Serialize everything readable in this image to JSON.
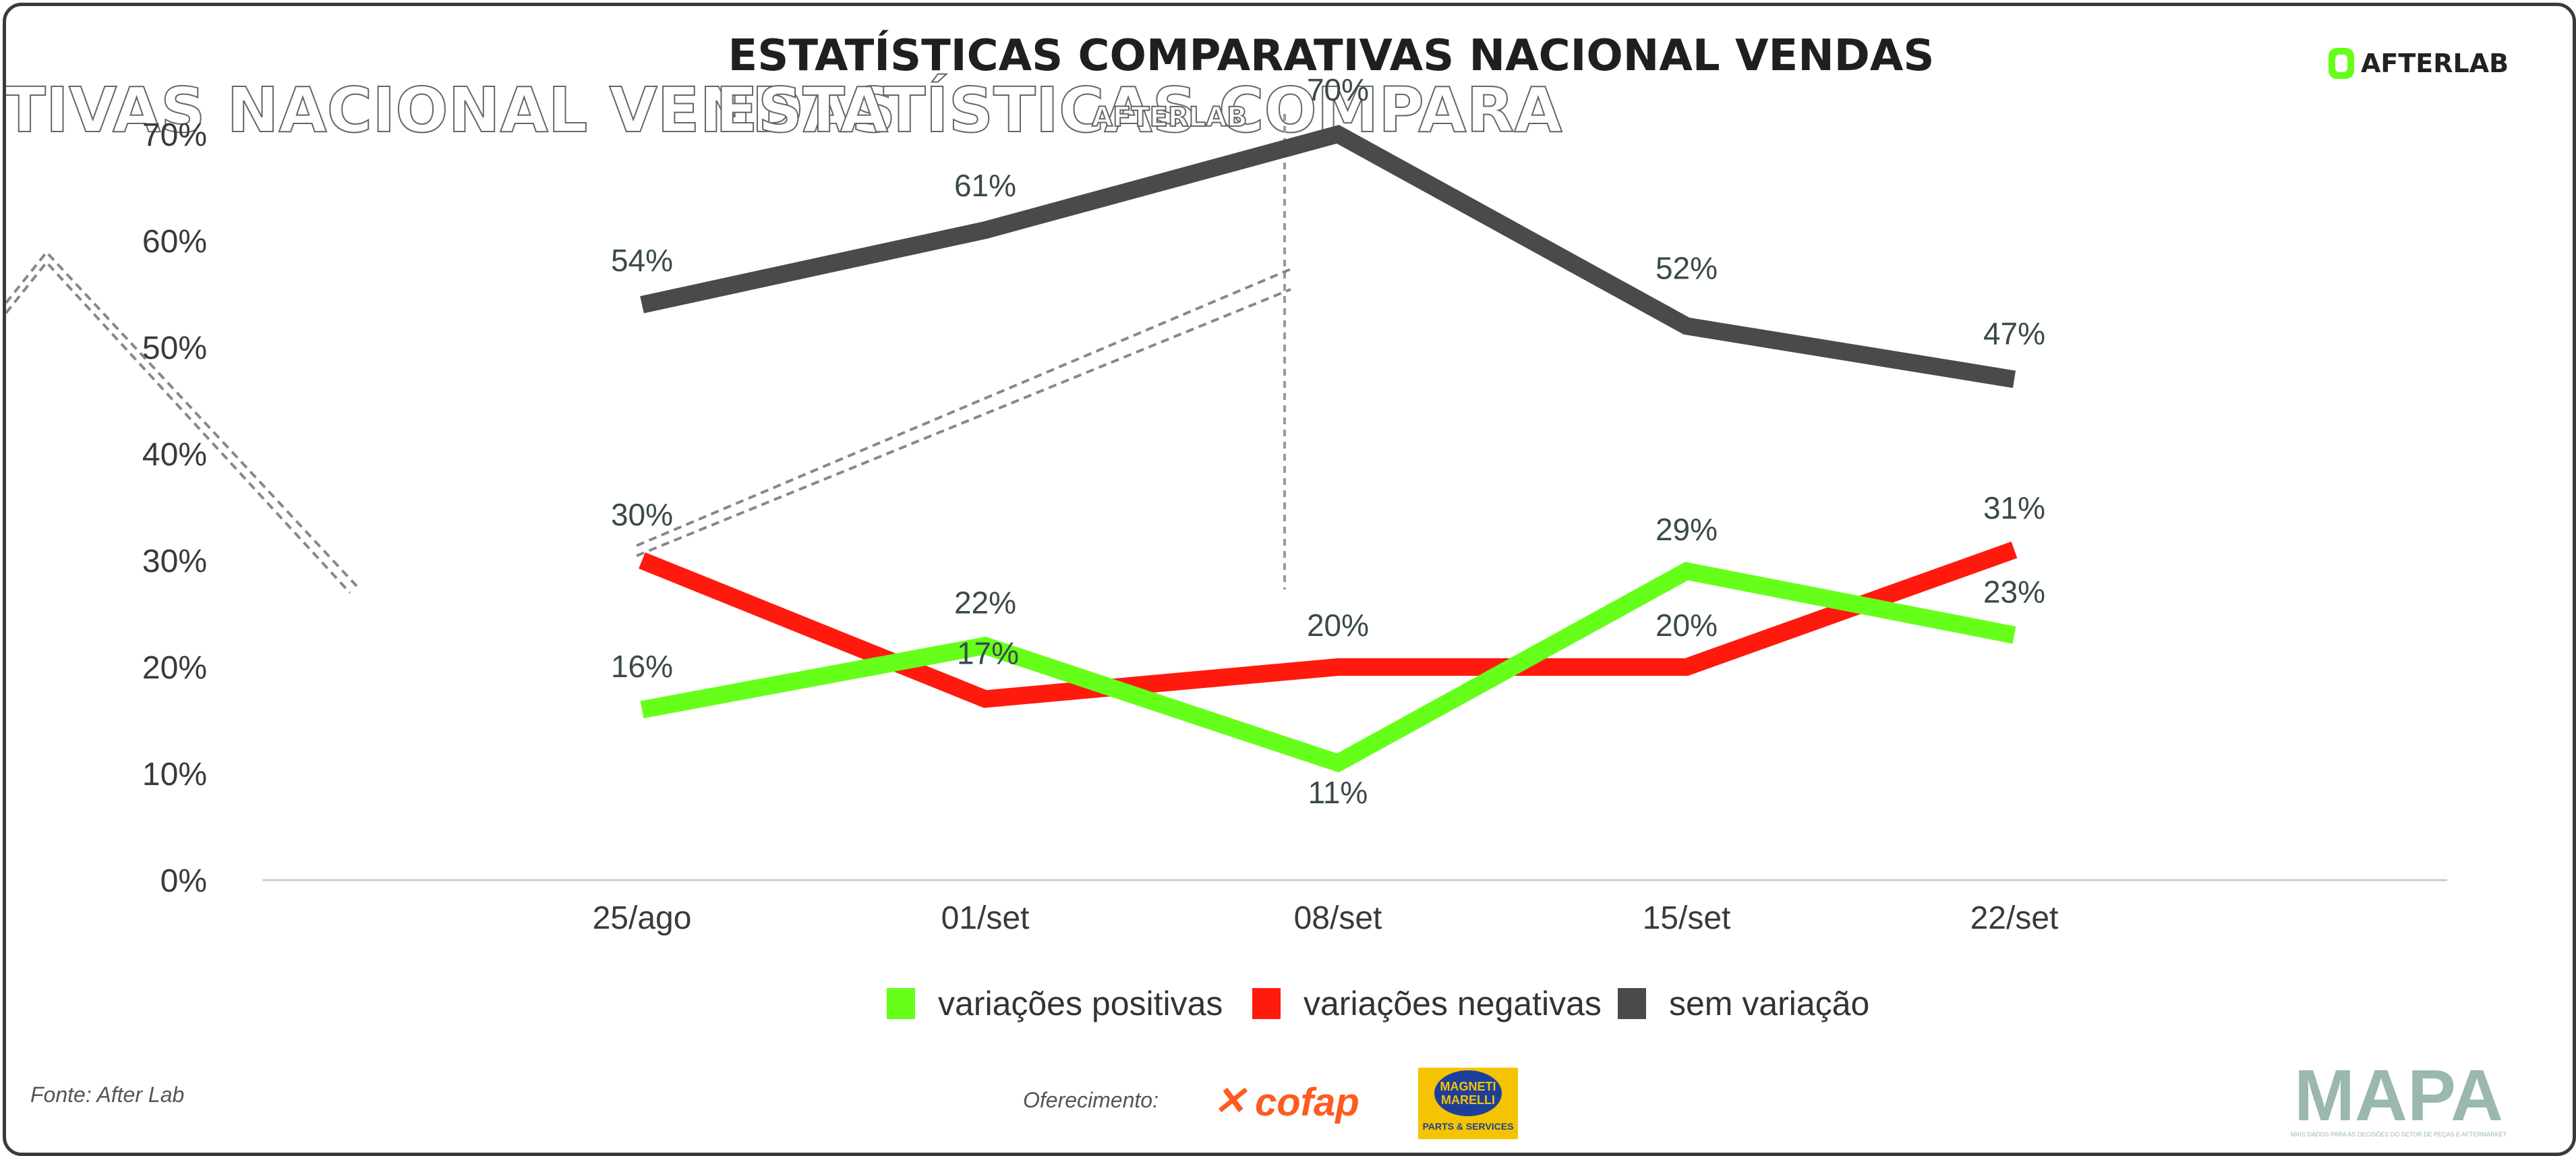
{
  "chart_data": {
    "type": "line",
    "title": "ESTATÍSTICAS COMPARATIVAS NACIONAL VENDAS",
    "categories": [
      "25/ago",
      "01/set",
      "08/set",
      "15/set",
      "22/set"
    ],
    "y_ticks": [
      "0%",
      "10%",
      "20%",
      "30%",
      "40%",
      "50%",
      "60%",
      "70%"
    ],
    "ylim": [
      0,
      70
    ],
    "unit": "%",
    "series": [
      {
        "name": "variações positivas",
        "color": "#66ff1a",
        "values": [
          16,
          22,
          11,
          29,
          23
        ]
      },
      {
        "name": "variações negativas",
        "color": "#ff1a0d",
        "values": [
          30,
          17,
          20,
          20,
          31
        ]
      },
      {
        "name": "sem variação",
        "color": "#4a4a4a",
        "values": [
          54,
          61,
          70,
          52,
          47
        ]
      }
    ],
    "legend_position": "bottom-center",
    "grid": false
  },
  "ghost_text": {
    "left": "TIVAS NACIONAL VENDAS",
    "center": "ESTATÍSTICAS COMPARA",
    "center_small": "AFTERLAB"
  },
  "brand": {
    "logo": "AFTERLAB",
    "logo_color": "#66ff1a"
  },
  "footer": {
    "source": "Fonte: After Lab",
    "sponsorship": "Oferecimento:",
    "cofap": "cofap",
    "magneti_line1": "MAGNETI",
    "magneti_line2": "MARELLI",
    "magneti_sub": "PARTS & SERVICES",
    "mapa": "MAPA",
    "mapa_sub": "MAIS DADOS PARA AS DECISÕES DO SETOR DE PEÇAS E AFTERMARKET"
  }
}
